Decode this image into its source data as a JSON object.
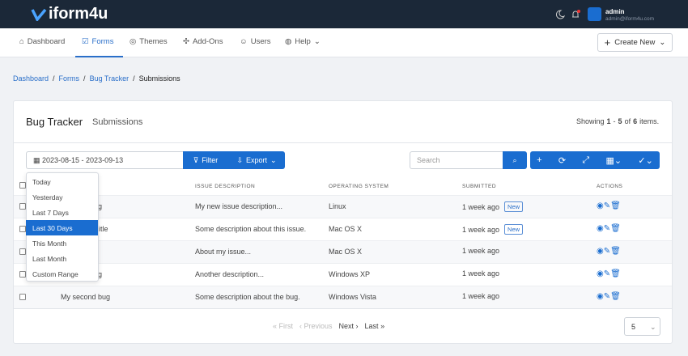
{
  "header": {
    "logo": "iform4u",
    "user": "admin",
    "email": "admin@iform4u.com"
  },
  "nav": {
    "items": [
      "Dashboard",
      "Forms",
      "Themes",
      "Add-Ons",
      "Users",
      "Help"
    ],
    "create": "Create New"
  },
  "breadcrumb": [
    "Dashboard",
    "Forms",
    "Bug Tracker",
    "Submissions"
  ],
  "card": {
    "title": "Bug Tracker",
    "subtitle": "Submissions",
    "summary": {
      "prefix": "Showing",
      "start": "1",
      "sep": "-",
      "end": "5",
      "of": "of",
      "total": "6",
      "suffix": "items."
    }
  },
  "toolbar": {
    "date_range": "2023-08-15 - 2023-09-13",
    "filter": "Filter",
    "export": "Export",
    "search": "Search"
  },
  "dropdown": {
    "items": [
      "Today",
      "Yesterday",
      "Last 7 Days",
      "Last 30 Days",
      "This Month",
      "Last Month",
      "Custom Range"
    ],
    "active": 3
  },
  "table": {
    "columns": [
      "ISSUE DESCRIPTION",
      "OPERATING SYSTEM",
      "SUBMITTED",
      "ACTIONS"
    ],
    "rows": [
      {
        "title": "g",
        "description": "My new issue description...",
        "os": "Linux",
        "submitted": "1 week ago",
        "badge": "New"
      },
      {
        "title": "itle",
        "description": "Some description about this issue.",
        "os": "Mac OS X",
        "submitted": "1 week ago",
        "badge": "New"
      },
      {
        "title": null,
        "description": "About my issue...",
        "os": "Mac OS X",
        "submitted": "1 week ago",
        "badge": null
      },
      {
        "title": "g",
        "description": "Another description...",
        "os": "Windows XP",
        "submitted": "1 week ago",
        "badge": null
      },
      {
        "title": "My second bug",
        "description": "Some description about the bug.",
        "os": "Windows Vista",
        "submitted": "1 week ago",
        "badge": null
      }
    ]
  },
  "pagination": {
    "first": "First",
    "previous": "Previous",
    "next": "Next",
    "last": "Last",
    "page_size": "5"
  }
}
